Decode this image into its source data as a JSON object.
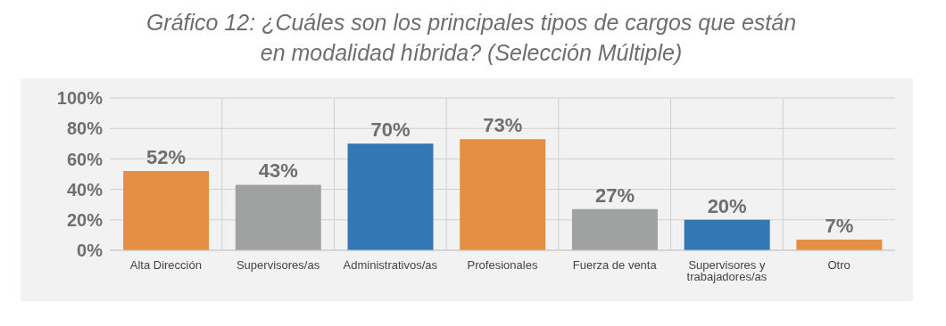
{
  "chart_data": {
    "type": "bar",
    "title": "Gráfico 12: ¿Cuáles son los principales tipos de cargos que están en modalidad híbrida? (Selección Múltiple)",
    "categories": [
      "Alta Dirección",
      "Supervisores/as",
      "Administrativos/as",
      "Profesionales",
      "Fuerza de venta",
      "Supervisores y trabajadores/as",
      "Otro"
    ],
    "values": [
      52,
      43,
      70,
      73,
      27,
      20,
      7
    ],
    "colors": [
      "#e48f43",
      "#a0a1a1",
      "#3477b5",
      "#e48f43",
      "#a0a1a1",
      "#3477b5",
      "#e48f43"
    ],
    "value_labels": [
      "52%",
      "43%",
      "70%",
      "73%",
      "27%",
      "20%",
      "7%"
    ],
    "ylim": [
      0,
      100
    ],
    "yticks": [
      {
        "value": 0,
        "label": "0%"
      },
      {
        "value": 20,
        "label": "20%"
      },
      {
        "value": 40,
        "label": "40%"
      },
      {
        "value": 60,
        "label": "60%"
      },
      {
        "value": 80,
        "label": "80%"
      },
      {
        "value": 100,
        "label": "100%"
      }
    ],
    "grid": true
  }
}
